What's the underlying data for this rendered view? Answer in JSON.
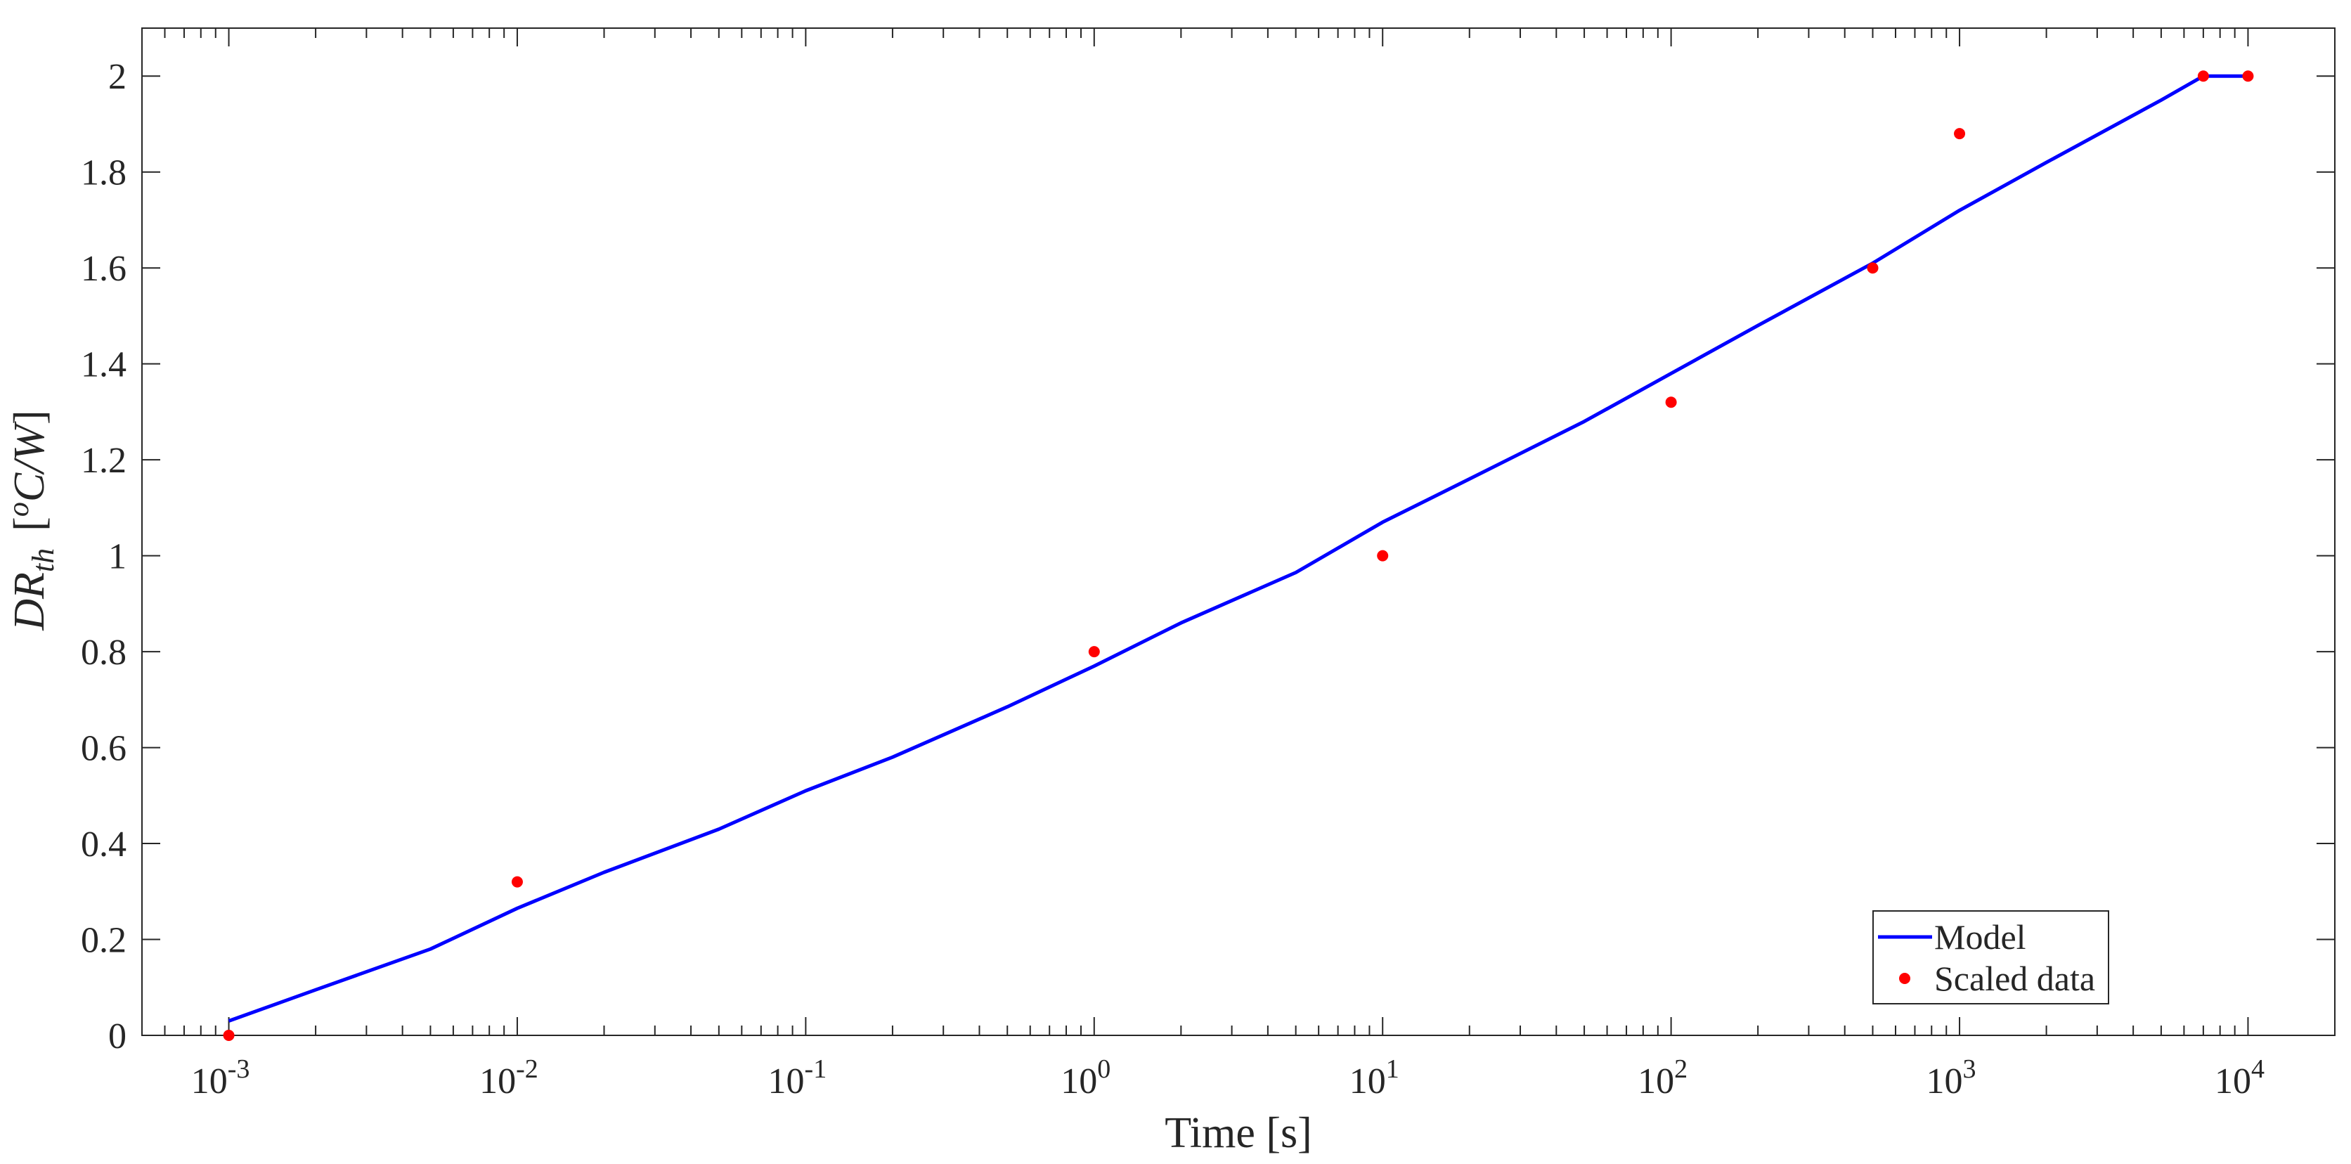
{
  "chart_data": {
    "type": "line",
    "xscale": "log",
    "xlim": [
      0.0005,
      20000
    ],
    "ylim": [
      0,
      2.1
    ],
    "grid": false,
    "xlabel": "Time [s]",
    "ylabel": {
      "main": "DR",
      "sub": "th",
      "unit_open": "[",
      "unit_sup": "o",
      "unit_rest": "C/W",
      "unit_close": "]"
    },
    "x_ticks": [
      {
        "value": 0.001,
        "base": "10",
        "exp": "-3"
      },
      {
        "value": 0.01,
        "base": "10",
        "exp": "-2"
      },
      {
        "value": 0.1,
        "base": "10",
        "exp": "-1"
      },
      {
        "value": 1,
        "base": "10",
        "exp": "0"
      },
      {
        "value": 10,
        "base": "10",
        "exp": "1"
      },
      {
        "value": 100,
        "base": "10",
        "exp": "2"
      },
      {
        "value": 1000,
        "base": "10",
        "exp": "3"
      },
      {
        "value": 10000,
        "base": "10",
        "exp": "4"
      }
    ],
    "y_ticks": [
      {
        "value": 0,
        "label": "0"
      },
      {
        "value": 0.2,
        "label": "0.2"
      },
      {
        "value": 0.4,
        "label": "0.4"
      },
      {
        "value": 0.6,
        "label": "0.6"
      },
      {
        "value": 0.8,
        "label": "0.8"
      },
      {
        "value": 1,
        "label": "1"
      },
      {
        "value": 1.2,
        "label": "1.2"
      },
      {
        "value": 1.4,
        "label": "1.4"
      },
      {
        "value": 1.6,
        "label": "1.6"
      },
      {
        "value": 1.8,
        "label": "1.8"
      },
      {
        "value": 2,
        "label": "2"
      }
    ],
    "legend_position": "bottom-right",
    "series": [
      {
        "name": "Model",
        "style": "line",
        "color": "#0000ff",
        "x": [
          0.001,
          0.002,
          0.005,
          0.01,
          0.02,
          0.05,
          0.1,
          0.2,
          0.5,
          1,
          2,
          5,
          10,
          20,
          50,
          100,
          200,
          500,
          1000,
          2000,
          5000,
          7000,
          10000
        ],
        "y": [
          0.03,
          0.095,
          0.18,
          0.265,
          0.34,
          0.43,
          0.51,
          0.58,
          0.685,
          0.77,
          0.86,
          0.965,
          1.07,
          1.16,
          1.28,
          1.38,
          1.48,
          1.61,
          1.72,
          1.82,
          1.95,
          2.0,
          2.0
        ]
      },
      {
        "name": "Scaled data",
        "style": "markers",
        "color": "#ff0000",
        "x": [
          0.001,
          0.01,
          1,
          10,
          100,
          500,
          1000,
          7000,
          10000
        ],
        "y": [
          0.0,
          0.32,
          0.8,
          1.0,
          1.32,
          1.6,
          1.88,
          2.0,
          2.0
        ]
      }
    ]
  }
}
